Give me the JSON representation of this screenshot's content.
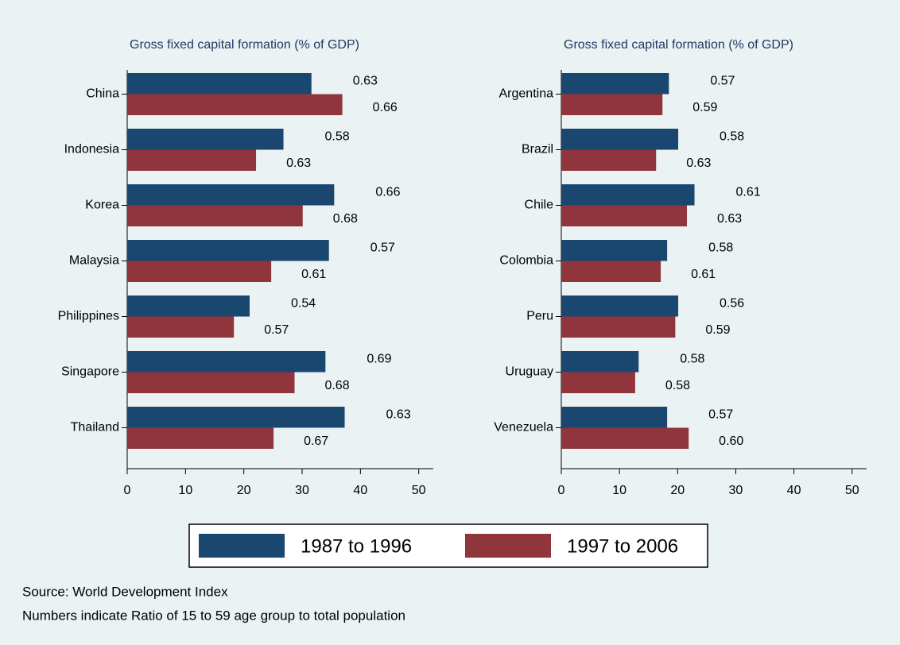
{
  "chart_data": [
    {
      "type": "bar",
      "orientation": "horizontal",
      "title": "Gross fixed capital formation (% of GDP)",
      "categories": [
        "China",
        "Indonesia",
        "Korea",
        "Malaysia",
        "Philippines",
        "Singapore",
        "Thailand"
      ],
      "series": [
        {
          "legend_entry": 0,
          "values": [
            31.6,
            26.8,
            35.5,
            34.6,
            21.0,
            34.0,
            37.3
          ],
          "ratio_labels": [
            "0.63",
            "0.58",
            "0.66",
            "0.57",
            "0.54",
            "0.69",
            "0.63"
          ]
        },
        {
          "legend_entry": 1,
          "values": [
            36.9,
            22.1,
            30.1,
            24.7,
            18.3,
            28.7,
            25.1
          ],
          "ratio_labels": [
            "0.66",
            "0.63",
            "0.68",
            "0.61",
            "0.57",
            "0.68",
            "0.67"
          ]
        }
      ],
      "xlim": [
        0,
        52.5
      ],
      "xticks": [
        0,
        10,
        20,
        30,
        40,
        50
      ]
    },
    {
      "type": "bar",
      "orientation": "horizontal",
      "title": "Gross fixed capital formation (% of GDP)",
      "categories": [
        "Argentina",
        "Brazil",
        "Chile",
        "Colombia",
        "Peru",
        "Uruguay",
        "Venezuela"
      ],
      "series": [
        {
          "legend_entry": 0,
          "values": [
            18.5,
            20.1,
            22.9,
            18.2,
            20.1,
            13.3,
            18.2
          ],
          "ratio_labels": [
            "0.57",
            "0.58",
            "0.61",
            "0.58",
            "0.56",
            "0.58",
            "0.57"
          ]
        },
        {
          "legend_entry": 1,
          "values": [
            17.4,
            16.3,
            21.6,
            17.1,
            19.6,
            12.7,
            21.9
          ],
          "ratio_labels": [
            "0.59",
            "0.63",
            "0.63",
            "0.61",
            "0.59",
            "0.58",
            "0.60"
          ]
        }
      ],
      "xlim": [
        0,
        52.5
      ],
      "xticks": [
        0,
        10,
        20,
        30,
        40,
        50
      ]
    }
  ],
  "legend": [
    {
      "name": "1987 to 1996",
      "color": "#1a476f"
    },
    {
      "name": "1997 to 2006",
      "color": "#90353b"
    }
  ],
  "notes": [
    "Source: World Development Index",
    "Numbers indicate Ratio of 15 to 59 age group to total population"
  ]
}
